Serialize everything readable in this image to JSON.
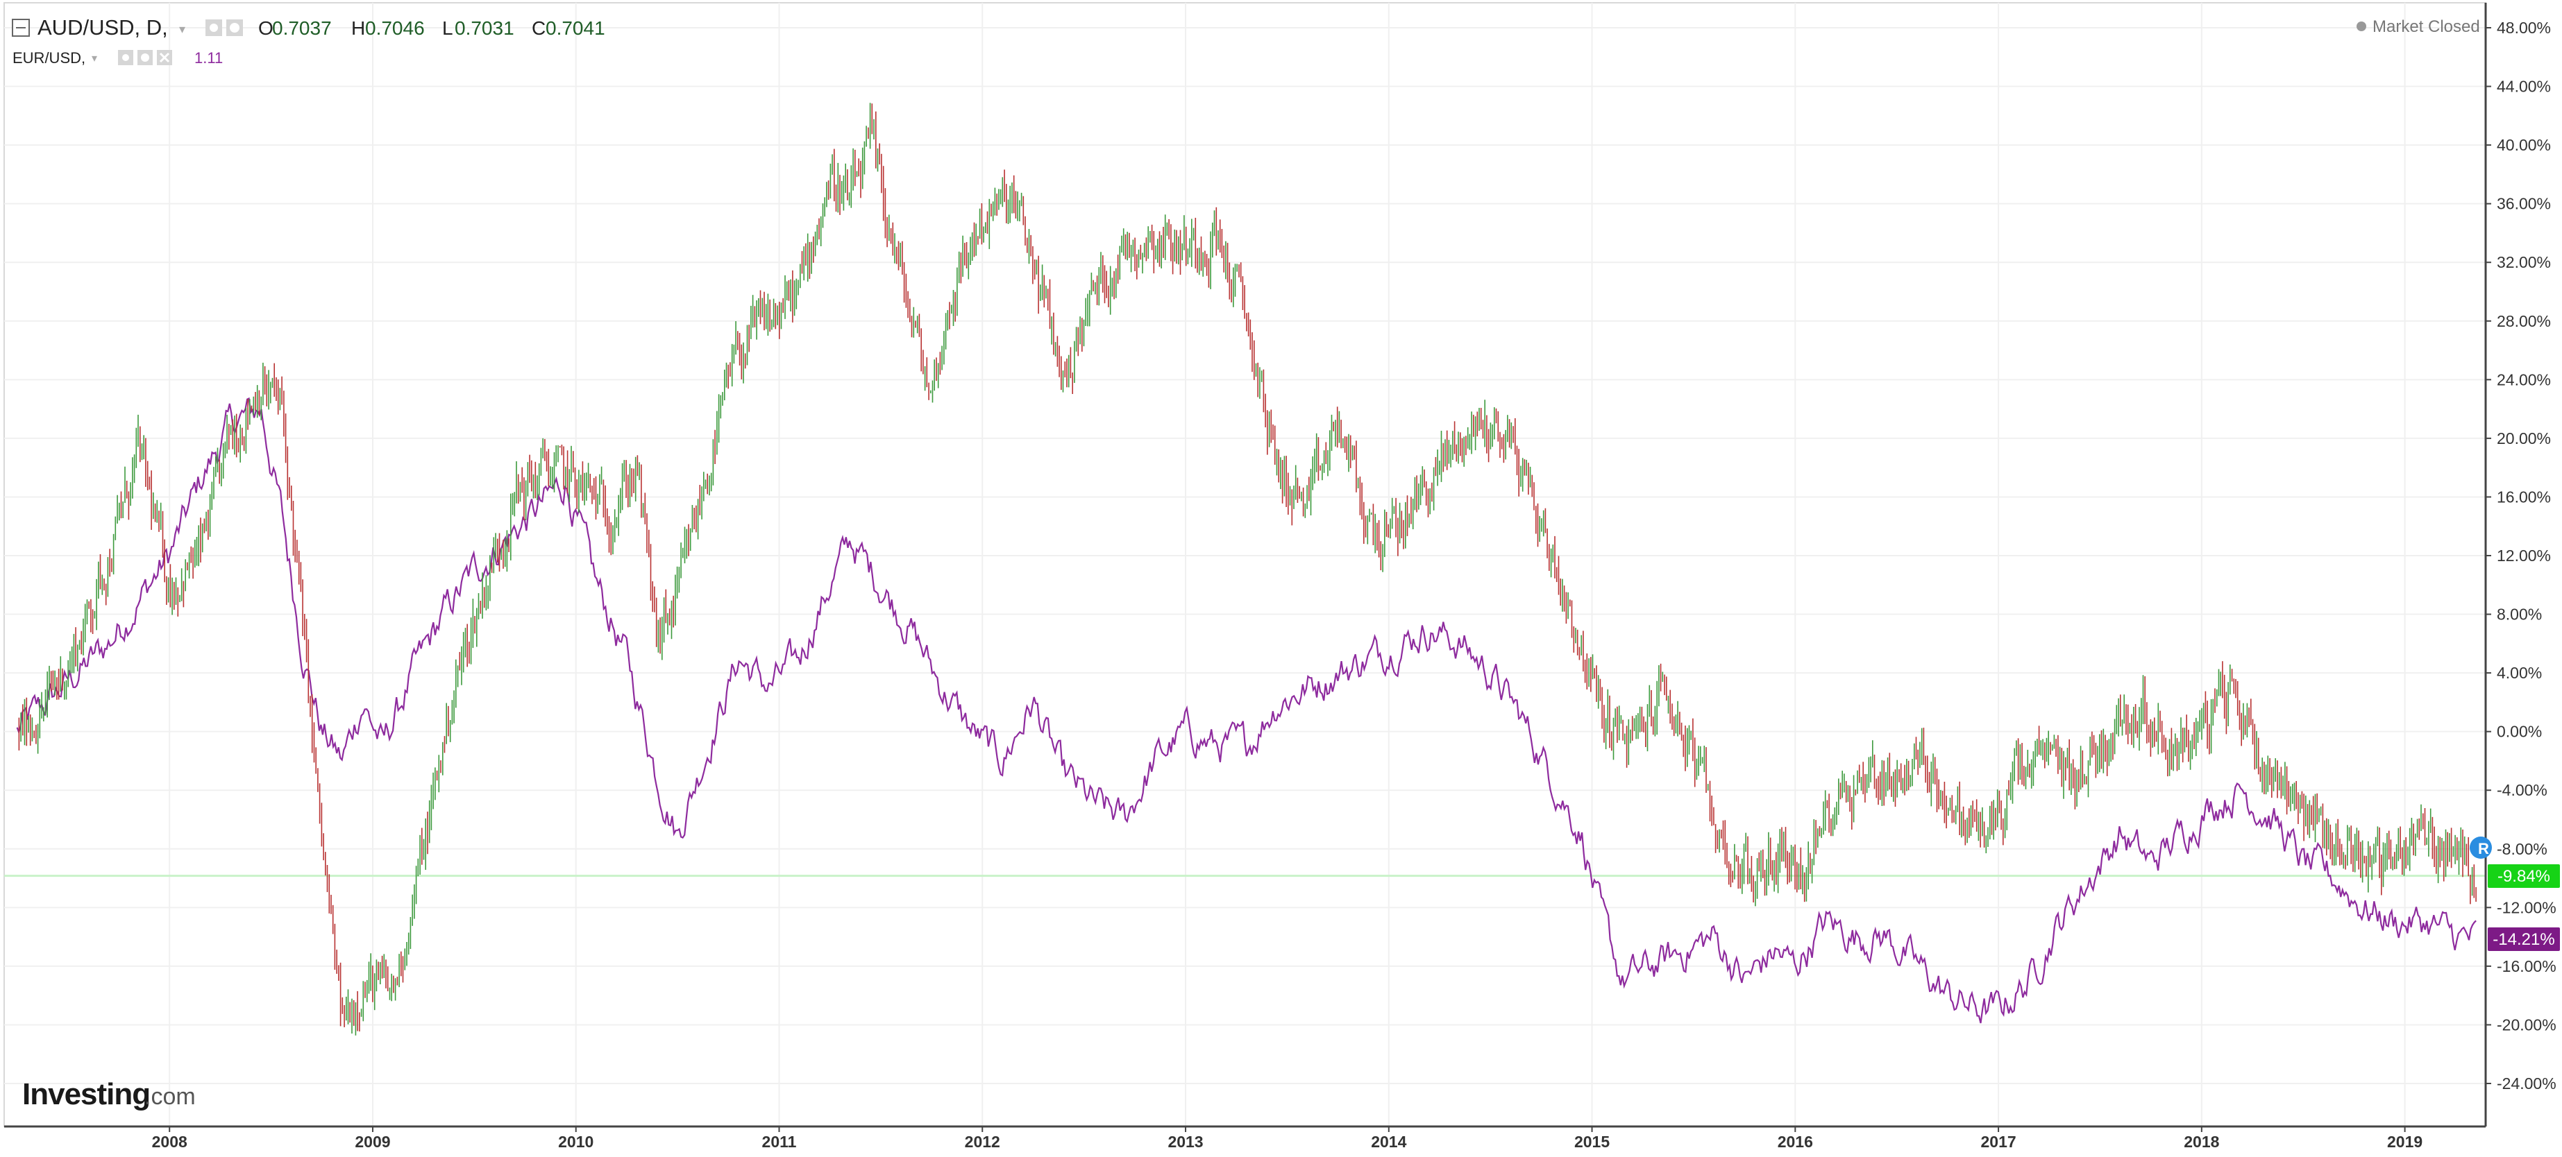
{
  "header": {
    "main_symbol": "AUD/USD, D,",
    "ohlc": [
      {
        "key": "O",
        "value": "0.7037"
      },
      {
        "key": "H",
        "value": "0.7046"
      },
      {
        "key": "L",
        "value": "0.7031"
      },
      {
        "key": "C",
        "value": "0.7041"
      }
    ],
    "compare_symbol": "EUR/USD,",
    "compare_value": "1.11",
    "market_status": "Market Closed"
  },
  "logo": {
    "brand": "Investing",
    "suffix": ".com"
  },
  "price_labels": {
    "aud": "-9.84%",
    "eur": "-14.21%",
    "aud_marker": "R"
  },
  "colors": {
    "up_candle": "#3d9a3d",
    "down_candle": "#b83232",
    "compare_line": "#8e2b9e",
    "aud_badge": "#16d316",
    "eur_badge": "#7d1a86",
    "ohlc_text": "#1f5d27",
    "compare_text": "#8e2b9e",
    "grid": "#f0f0f0",
    "zero_line": "#c9f2c9"
  },
  "chart_data": {
    "type": "line",
    "y_unit": "percent",
    "y_ticks": [
      48,
      44,
      40,
      36,
      32,
      28,
      24,
      20,
      16,
      12,
      8,
      4,
      0,
      -4,
      -8,
      -12,
      -16,
      -20,
      -24
    ],
    "y_tick_labels": [
      "48.00%",
      "44.00%",
      "40.00%",
      "36.00%",
      "32.00%",
      "28.00%",
      "24.00%",
      "20.00%",
      "16.00%",
      "12.00%",
      "8.00%",
      "4.00%",
      "0.00%",
      "-4.00%",
      "-8.00%",
      "-12.00%",
      "-16.00%",
      "-20.00%",
      "-24.00%"
    ],
    "x_tick_labels": [
      "2008",
      "2009",
      "2010",
      "2011",
      "2012",
      "2013",
      "2014",
      "2015",
      "2016",
      "2017",
      "2018",
      "2019"
    ],
    "x_range": [
      "2007-03",
      "2019-05"
    ],
    "ylim": [
      -27,
      50
    ],
    "grid": true,
    "series": [
      {
        "name": "AUD/USD",
        "style": "candles",
        "x": [
          2007.25,
          2007.4,
          2007.55,
          2007.7,
          2007.85,
          2008.0,
          2008.15,
          2008.3,
          2008.45,
          2008.55,
          2008.65,
          2008.75,
          2008.85,
          2008.95,
          2009.1,
          2009.25,
          2009.4,
          2009.55,
          2009.7,
          2009.85,
          2010.0,
          2010.15,
          2010.3,
          2010.4,
          2010.5,
          2010.65,
          2010.8,
          2010.95,
          2011.1,
          2011.25,
          2011.35,
          2011.45,
          2011.55,
          2011.65,
          2011.75,
          2011.85,
          2012.0,
          2012.15,
          2012.25,
          2012.4,
          2012.55,
          2012.7,
          2012.85,
          2013.0,
          2013.15,
          2013.3,
          2013.45,
          2013.6,
          2013.75,
          2013.9,
          2014.0,
          2014.15,
          2014.3,
          2014.45,
          2014.6,
          2014.75,
          2014.9,
          2015.05,
          2015.2,
          2015.35,
          2015.5,
          2015.65,
          2015.8,
          2015.95,
          2016.05,
          2016.2,
          2016.35,
          2016.5,
          2016.65,
          2016.8,
          2016.95,
          2017.1,
          2017.25,
          2017.4,
          2017.55,
          2017.7,
          2017.85,
          2018.0,
          2018.15,
          2018.3,
          2018.45,
          2018.6,
          2018.75,
          2018.9,
          2019.05,
          2019.2,
          2019.35
        ],
        "values": [
          0,
          2,
          6,
          12,
          19,
          10,
          12,
          20,
          24,
          22,
          8,
          -8,
          -20,
          -17,
          -18,
          -8,
          3,
          10,
          16,
          18,
          17,
          15,
          18,
          6,
          9,
          18,
          26,
          28,
          30,
          38,
          36,
          40,
          34,
          28,
          23,
          30,
          35,
          36,
          32,
          24,
          30,
          33,
          34,
          33,
          34,
          28,
          18,
          15,
          21,
          14,
          13,
          16,
          19,
          21,
          20,
          14,
          8,
          1,
          -1,
          3,
          -2,
          -8,
          -10,
          -8,
          -10,
          -4,
          -3,
          -3,
          -2,
          -6,
          -7,
          -3,
          -2,
          -3,
          0,
          2,
          -1,
          0,
          3,
          -2,
          -4,
          -7,
          -8,
          -9,
          -7,
          -8,
          -9.84
        ]
      },
      {
        "name": "EUR/USD",
        "style": "line",
        "x": [
          2007.25,
          2007.4,
          2007.55,
          2007.7,
          2007.85,
          2008.0,
          2008.15,
          2008.3,
          2008.45,
          2008.55,
          2008.65,
          2008.75,
          2008.85,
          2008.95,
          2009.05,
          2009.2,
          2009.35,
          2009.5,
          2009.65,
          2009.8,
          2009.95,
          2010.1,
          2010.25,
          2010.4,
          2010.5,
          2010.65,
          2010.8,
          2010.95,
          2011.1,
          2011.25,
          2011.35,
          2011.5,
          2011.65,
          2011.8,
          2011.95,
          2012.1,
          2012.25,
          2012.4,
          2012.55,
          2012.7,
          2012.85,
          2013.0,
          2013.15,
          2013.3,
          2013.45,
          2013.6,
          2013.75,
          2013.9,
          2014.05,
          2014.2,
          2014.35,
          2014.5,
          2014.65,
          2014.8,
          2014.95,
          2015.05,
          2015.15,
          2015.3,
          2015.45,
          2015.6,
          2015.75,
          2015.9,
          2016.0,
          2016.15,
          2016.3,
          2016.45,
          2016.6,
          2016.75,
          2016.9,
          2017.0,
          2017.15,
          2017.3,
          2017.45,
          2017.6,
          2017.75,
          2017.9,
          2018.05,
          2018.2,
          2018.35,
          2018.5,
          2018.65,
          2018.8,
          2018.95,
          2019.1,
          2019.25,
          2019.35
        ],
        "values": [
          0,
          2,
          4,
          6,
          9,
          12,
          17,
          21,
          22,
          15,
          6,
          0,
          -2,
          2,
          -1,
          4,
          8,
          11,
          13,
          15,
          17,
          10,
          5,
          -3,
          -7,
          -1,
          5,
          3,
          5,
          10,
          13,
          10,
          7,
          3,
          0,
          -2,
          2,
          -3,
          -5,
          -6,
          -2,
          0,
          -1,
          -1,
          2,
          3,
          4,
          5,
          6,
          7,
          6,
          4,
          1,
          -3,
          -7,
          -13,
          -17,
          -16,
          -15,
          -14,
          -17,
          -15,
          -16,
          -13,
          -14,
          -14,
          -16,
          -18,
          -19,
          -19,
          -17,
          -13,
          -10,
          -7,
          -9,
          -7,
          -5,
          -4,
          -6,
          -9,
          -10,
          -12,
          -13,
          -13,
          -14,
          -14.21
        ]
      }
    ]
  }
}
